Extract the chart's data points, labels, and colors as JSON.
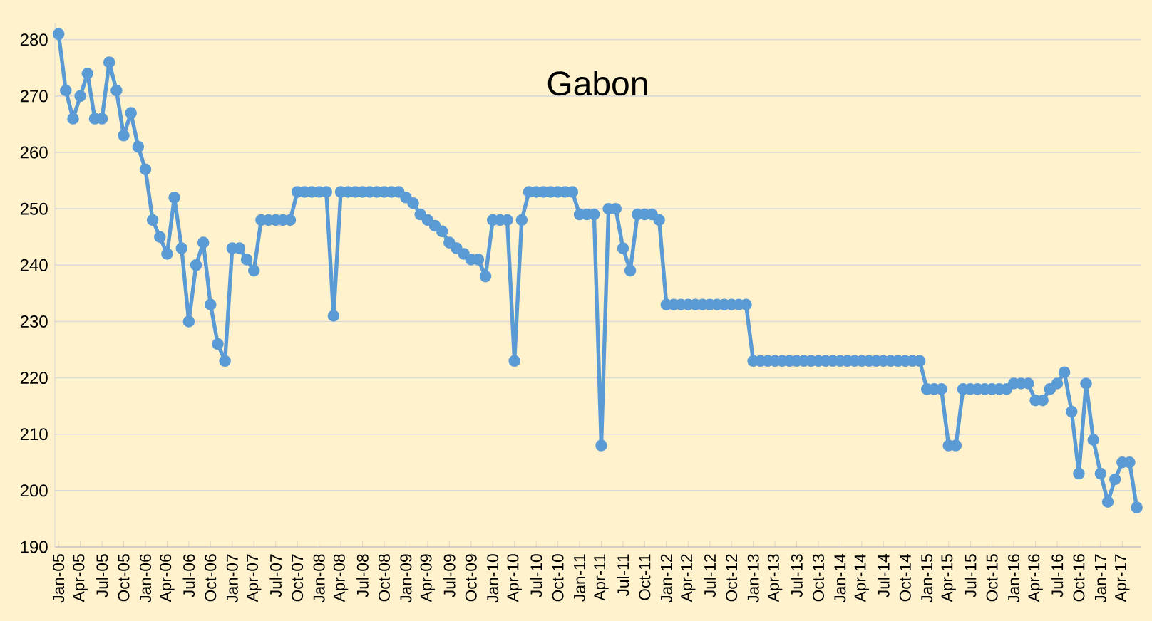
{
  "chart_data": {
    "type": "line",
    "title": "Gabon",
    "categories": [
      "Jan-05",
      null,
      null,
      "Apr-05",
      null,
      null,
      "Jul-05",
      null,
      null,
      "Oct-05",
      null,
      null,
      "Jan-06",
      null,
      null,
      "Apr-06",
      null,
      null,
      "Jul-06",
      null,
      null,
      "Oct-06",
      null,
      null,
      "Jan-07",
      null,
      null,
      "Apr-07",
      null,
      null,
      "Jul-07",
      null,
      null,
      "Oct-07",
      null,
      null,
      "Jan-08",
      null,
      null,
      "Apr-08",
      null,
      null,
      "Jul-08",
      null,
      null,
      "Oct-08",
      null,
      null,
      "Jan-09",
      null,
      null,
      "Apr-09",
      null,
      null,
      "Jul-09",
      null,
      null,
      "Oct-09",
      null,
      null,
      "Jan-10",
      null,
      null,
      "Apr-10",
      null,
      null,
      "Jul-10",
      null,
      null,
      "Oct-10",
      null,
      null,
      "Jan-11",
      null,
      null,
      "Apr-11",
      null,
      null,
      "Jul-11",
      null,
      null,
      "Oct-11",
      null,
      null,
      "Jan-12",
      null,
      null,
      "Apr-12",
      null,
      null,
      "Jul-12",
      null,
      null,
      "Oct-12",
      null,
      null,
      "Jan-13",
      null,
      null,
      "Apr-13",
      null,
      null,
      "Jul-13",
      null,
      null,
      "Oct-13",
      null,
      null,
      "Jan-14",
      null,
      null,
      "Apr-14",
      null,
      null,
      "Jul-14",
      null,
      null,
      "Oct-14",
      null,
      null,
      "Jan-15",
      null,
      null,
      "Apr-15",
      null,
      null,
      "Jul-15",
      null,
      null,
      "Oct-15",
      null,
      null,
      "Jan-16",
      null,
      null,
      "Apr-16",
      null,
      null,
      "Jul-16",
      null,
      null,
      "Oct-16",
      null,
      null,
      "Jan-17",
      null,
      null,
      "Apr-17",
      null,
      null
    ],
    "values": [
      281,
      271,
      266,
      270,
      274,
      266,
      266,
      276,
      271,
      263,
      267,
      261,
      257,
      248,
      245,
      242,
      252,
      243,
      230,
      240,
      244,
      233,
      226,
      223,
      243,
      243,
      241,
      239,
      248,
      248,
      248,
      248,
      248,
      253,
      253,
      253,
      253,
      253,
      231,
      253,
      253,
      253,
      253,
      253,
      253,
      253,
      253,
      253,
      252,
      251,
      249,
      248,
      247,
      246,
      244,
      243,
      242,
      241,
      241,
      238,
      248,
      248,
      248,
      223,
      248,
      253,
      253,
      253,
      253,
      253,
      253,
      253,
      249,
      249,
      249,
      208,
      250,
      250,
      243,
      239,
      249,
      249,
      249,
      248,
      233,
      233,
      233,
      233,
      233,
      233,
      233,
      233,
      233,
      233,
      233,
      233,
      223,
      223,
      223,
      223,
      223,
      223,
      223,
      223,
      223,
      223,
      223,
      223,
      223,
      223,
      223,
      223,
      223,
      223,
      223,
      223,
      223,
      223,
      223,
      223,
      218,
      218,
      218,
      208,
      208,
      218,
      218,
      218,
      218,
      218,
      218,
      218,
      219,
      219,
      219,
      216,
      216,
      218,
      219,
      221,
      214,
      203,
      219,
      209,
      203,
      198,
      202,
      205,
      205,
      197
    ],
    "color": "#5b9bd5",
    "ylim": [
      190,
      283
    ],
    "yticks": [
      190,
      200,
      210,
      220,
      230,
      240,
      250,
      260,
      270,
      280
    ],
    "grid": "y",
    "marker": "circle",
    "line_style": "solid"
  }
}
